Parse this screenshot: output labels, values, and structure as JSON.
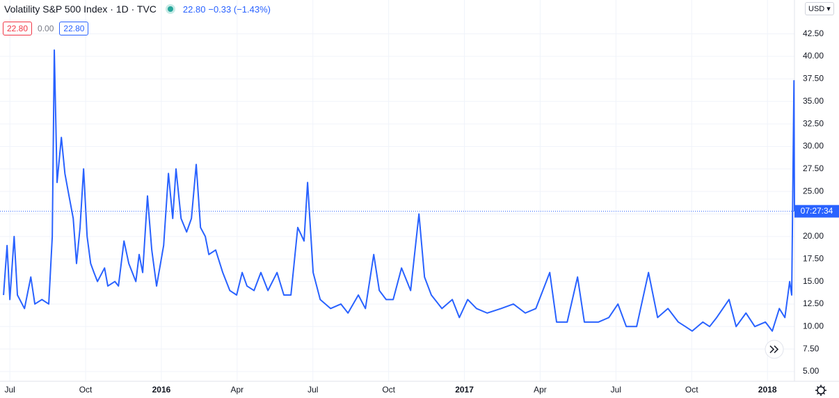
{
  "chart_data": {
    "type": "line",
    "title": "Volatility S&P 500 Index · 1D · TVC",
    "last": "22.80",
    "change": "−0.33 (−1.43%)",
    "badges": [
      "22.80",
      "0.00",
      "22.80"
    ],
    "currency": "USD",
    "countdown": "07:27:34",
    "price_line": 22.8,
    "color": "#2962ff",
    "grid": true,
    "x": [
      -0.25,
      -0.11,
      0,
      0.17,
      0.3,
      0.58,
      0.83,
      0.99,
      1.27,
      1.54,
      1.68,
      1.76,
      1.87,
      2.04,
      2.18,
      2.31,
      2.51,
      2.64,
      2.78,
      2.92,
      3.06,
      3.2,
      3.33,
      3.47,
      3.75,
      3.88,
      4.16,
      4.3,
      4.52,
      4.71,
      4.99,
      5.12,
      5.26,
      5.45,
      5.62,
      5.81,
      6.09,
      6.28,
      6.45,
      6.58,
      6.78,
      7.0,
      7.19,
      7.38,
      7.55,
      7.74,
      7.88,
      8.15,
      8.43,
      8.71,
      8.98,
      9.2,
      9.39,
      9.67,
      9.94,
      10.22,
      10.58,
      10.85,
      11.13,
      11.4,
      11.65,
      11.79,
      12.01,
      12.29,
      12.7,
      13.11,
      13.39,
      13.8,
      14.08,
      14.41,
      14.63,
      14.9,
      15.18,
      15.51,
      15.87,
      16.2,
      16.42,
      16.69,
      17.11,
      17.52,
      17.8,
      18.13,
      18.48,
      18.9,
      19.45,
      19.94,
      20.41,
      20.83,
      21.38,
      21.65,
      22.07,
      22.48,
      22.75,
      23.31,
      23.72,
      24.08,
      24.41,
      24.82,
      25.29,
      25.65,
      26.06,
      26.47,
      26.75,
      27.02,
      27.44,
      27.71,
      27.99,
      28.48,
      28.76,
      29.15,
      29.5,
      29.92,
      30.19,
      30.47,
      30.69,
      30.88,
      30.96,
      31.05,
      31.07
    ],
    "values": [
      13.5,
      19,
      13,
      20,
      13.5,
      12,
      15.5,
      12.5,
      13,
      12.5,
      20,
      40.7,
      26,
      31,
      27,
      25,
      22,
      17,
      21,
      27.5,
      20,
      17,
      16,
      15,
      16.5,
      14.5,
      15,
      14.5,
      19.5,
      17,
      15,
      18,
      16,
      24.5,
      18.5,
      14.5,
      19,
      27,
      22,
      27.5,
      22,
      20.5,
      22,
      28,
      21,
      20,
      18,
      18.5,
      16,
      14,
      13.5,
      16,
      14.5,
      14,
      16,
      14,
      16,
      13.5,
      13.5,
      21,
      19.5,
      26,
      16,
      13,
      12,
      12.5,
      11.5,
      13.5,
      12,
      18,
      14,
      13,
      13,
      16.5,
      14,
      22.5,
      15.5,
      13.5,
      12,
      13,
      11,
      13,
      12,
      11.5,
      12,
      12.5,
      11.5,
      12,
      16,
      10.5,
      10.5,
      15.5,
      10.5,
      10.5,
      11,
      12.5,
      10,
      10,
      16,
      11,
      12,
      10.5,
      10,
      9.5,
      10.5,
      10,
      11,
      13,
      10,
      11.5,
      10,
      10.5,
      9.5,
      12,
      11,
      15,
      13.5,
      37.3,
      22.8
    ],
    "xlim": [
      -0.39,
      31.07
    ],
    "xticks": [
      {
        "value": 0,
        "label": "Jul"
      },
      {
        "value": 3,
        "label": "Oct"
      },
      {
        "value": 6,
        "label": "2016"
      },
      {
        "value": 9,
        "label": "Apr"
      },
      {
        "value": 12,
        "label": "Jul"
      },
      {
        "value": 15,
        "label": "Oct"
      },
      {
        "value": 18,
        "label": "2017"
      },
      {
        "value": 21,
        "label": "Apr"
      },
      {
        "value": 24,
        "label": "Jul"
      },
      {
        "value": 27,
        "label": "Oct"
      },
      {
        "value": 30,
        "label": "2018"
      }
    ],
    "ylim": [
      3.92,
      46.26
    ],
    "yticks": [
      {
        "value": 5,
        "label": "5.00"
      },
      {
        "value": 7.5,
        "label": "7.50"
      },
      {
        "value": 10,
        "label": "10.00"
      },
      {
        "value": 12.5,
        "label": "12.50"
      },
      {
        "value": 15,
        "label": "15.00"
      },
      {
        "value": 17.5,
        "label": "17.50"
      },
      {
        "value": 20,
        "label": "20.00"
      },
      {
        "value": 22.5,
        "label": "22.50"
      },
      {
        "value": 25,
        "label": "25.00"
      },
      {
        "value": 27.5,
        "label": "27.50"
      },
      {
        "value": 30,
        "label": "30.00"
      },
      {
        "value": 32.5,
        "label": "32.50"
      },
      {
        "value": 35,
        "label": "35.00"
      },
      {
        "value": 37.5,
        "label": "37.50"
      },
      {
        "value": 40,
        "label": "40.00"
      },
      {
        "value": 42.5,
        "label": "42.50"
      }
    ]
  }
}
